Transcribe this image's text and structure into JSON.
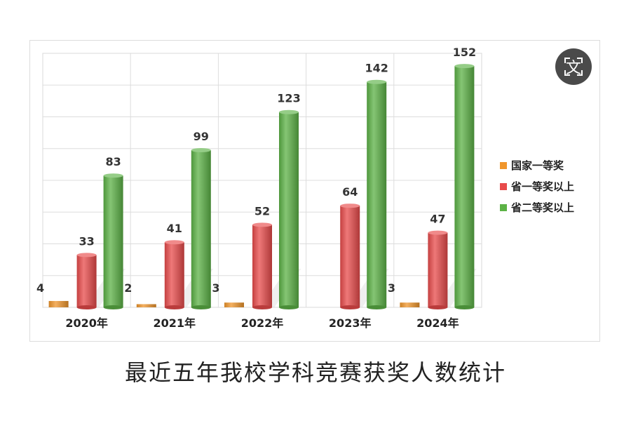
{
  "chart_data": {
    "type": "bar",
    "categories": [
      "2020年",
      "2021年",
      "2022年",
      "2023年",
      "2024年"
    ],
    "series": [
      {
        "name": "国家一等奖",
        "values": [
          4,
          2,
          3,
          null,
          3
        ],
        "color": "#f0962c"
      },
      {
        "name": "省一等奖以上",
        "values": [
          33,
          41,
          52,
          64,
          47
        ],
        "color": "#e84b4b"
      },
      {
        "name": "省二等奖以上",
        "values": [
          83,
          99,
          123,
          142,
          152
        ],
        "color": "#5cb246"
      }
    ],
    "ylim": [
      0,
      160
    ],
    "grid": true,
    "legend_position": "right",
    "style": "3d-cylinder"
  },
  "caption": "最近五年我校学科竞赛获奖人数统计",
  "translate_button": {
    "glyph": "文",
    "icon": "translate-icon"
  }
}
